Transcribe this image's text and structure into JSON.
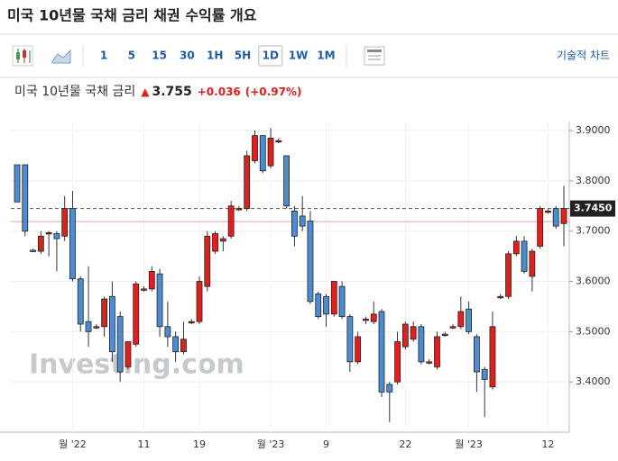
{
  "page_title": "미국 10년물 국채 금리  채권 수익률 개요",
  "toolbar": {
    "intervals": [
      "1",
      "5",
      "15",
      "30",
      "1H",
      "5H",
      "1D",
      "1W",
      "1M"
    ],
    "selected_index": 6,
    "tech_chart": "기술적 차트"
  },
  "quote": {
    "name": "미국 10년물 국채 금리",
    "price": "3.755",
    "change": "+0.036",
    "change_pct": "(+0.97%)"
  },
  "chart_data": {
    "type": "candlestick",
    "watermark": "Investing.com",
    "categories": [
      null,
      null,
      null,
      null,
      null,
      null,
      null,
      "월 '22",
      null,
      null,
      null,
      null,
      null,
      null,
      null,
      null,
      "11",
      null,
      null,
      null,
      null,
      null,
      null,
      "19",
      null,
      null,
      null,
      null,
      null,
      null,
      null,
      null,
      "월 '23",
      null,
      null,
      null,
      null,
      null,
      null,
      "9",
      null,
      null,
      null,
      null,
      null,
      null,
      null,
      null,
      null,
      "22",
      null,
      null,
      null,
      null,
      null,
      null,
      null,
      "월 '23",
      null,
      null,
      null,
      null,
      null,
      null,
      null,
      null,
      null,
      "12",
      null,
      null
    ],
    "open": [
      3.832,
      3.832,
      3.662,
      3.66,
      3.697,
      3.695,
      3.69,
      3.745,
      3.605,
      3.52,
      3.51,
      3.51,
      3.57,
      3.53,
      3.43,
      3.475,
      3.585,
      3.585,
      3.615,
      3.51,
      3.49,
      3.46,
      3.52,
      3.52,
      3.59,
      3.66,
      3.68,
      3.69,
      3.745,
      3.745,
      3.84,
      3.89,
      3.83,
      3.88,
      3.85,
      3.74,
      3.73,
      3.72,
      3.575,
      3.57,
      3.535,
      3.59,
      3.53,
      3.44,
      3.525,
      3.52,
      3.54,
      3.395,
      3.4,
      3.47,
      3.485,
      3.51,
      3.44,
      3.43,
      3.495,
      3.51,
      3.51,
      3.545,
      3.49,
      3.425,
      3.39,
      3.57,
      3.57,
      3.655,
      3.68,
      3.61,
      3.67,
      3.74,
      3.745,
      3.715
    ],
    "high": [
      3.832,
      3.832,
      3.665,
      3.7,
      3.7,
      3.7,
      3.77,
      3.78,
      3.61,
      3.63,
      3.515,
      3.57,
      3.6,
      3.54,
      3.48,
      3.6,
      3.59,
      3.63,
      3.625,
      3.56,
      3.5,
      3.52,
      3.525,
      3.61,
      3.7,
      3.7,
      3.69,
      3.76,
      3.75,
      3.86,
      3.9,
      3.89,
      3.905,
      3.885,
      3.85,
      3.75,
      3.77,
      3.74,
      3.58,
      3.575,
      3.6,
      3.6,
      3.535,
      3.5,
      3.53,
      3.56,
      3.545,
      3.4,
      3.5,
      3.52,
      3.52,
      3.515,
      3.445,
      3.5,
      3.5,
      3.515,
      3.57,
      3.56,
      3.495,
      3.43,
      3.54,
      3.575,
      3.66,
      3.69,
      3.69,
      3.665,
      3.75,
      3.745,
      3.75,
      3.79
    ],
    "low": [
      3.758,
      3.69,
      3.658,
      3.655,
      3.65,
      3.62,
      3.68,
      3.6,
      3.5,
      3.47,
      3.505,
      3.49,
      3.44,
      3.4,
      3.425,
      3.47,
      3.58,
      3.58,
      3.49,
      3.47,
      3.44,
      3.455,
      3.515,
      3.515,
      3.58,
      3.655,
      3.66,
      3.685,
      3.74,
      3.74,
      3.835,
      3.815,
      3.825,
      3.875,
      3.745,
      3.67,
      3.7,
      3.555,
      3.525,
      3.51,
      3.53,
      3.525,
      3.42,
      3.435,
      3.515,
      3.515,
      3.37,
      3.32,
      3.395,
      3.465,
      3.48,
      3.435,
      3.435,
      3.425,
      3.49,
      3.505,
      3.505,
      3.495,
      3.38,
      3.33,
      3.385,
      3.565,
      3.565,
      3.65,
      3.615,
      3.58,
      3.665,
      3.735,
      3.705,
      3.67
    ],
    "close": [
      3.758,
      3.7,
      3.661,
      3.69,
      3.697,
      3.685,
      3.745,
      3.605,
      3.515,
      3.5,
      3.51,
      3.565,
      3.46,
      3.42,
      3.48,
      3.595,
      3.585,
      3.62,
      3.51,
      3.49,
      3.46,
      3.485,
      3.52,
      3.6,
      3.69,
      3.695,
      3.685,
      3.75,
      3.745,
      3.85,
      3.89,
      3.82,
      3.885,
      3.88,
      3.75,
      3.69,
      3.71,
      3.56,
      3.53,
      3.535,
      3.6,
      3.53,
      3.44,
      3.49,
      3.525,
      3.535,
      3.38,
      3.38,
      3.48,
      3.515,
      3.51,
      3.44,
      3.44,
      3.49,
      3.495,
      3.51,
      3.54,
      3.5,
      3.42,
      3.405,
      3.51,
      3.57,
      3.655,
      3.68,
      3.62,
      3.66,
      3.745,
      3.74,
      3.71,
      3.745
    ],
    "up_color": "#e0201c",
    "down_color": "#4d8ccf",
    "ylim": [
      3.3,
      3.918
    ],
    "yticks": [
      {
        "value": 3.4,
        "label": "3.4000"
      },
      {
        "value": 3.5,
        "label": "3.5000"
      },
      {
        "value": 3.6,
        "label": "3.6000"
      },
      {
        "value": 3.7,
        "label": "3.7000"
      },
      {
        "value": 3.8,
        "label": "3.8000"
      },
      {
        "value": 3.9,
        "label": "3.9000"
      }
    ],
    "last_price": {
      "value": 3.745,
      "label": "3.7450"
    },
    "prev_close": 3.719,
    "grid": true
  }
}
